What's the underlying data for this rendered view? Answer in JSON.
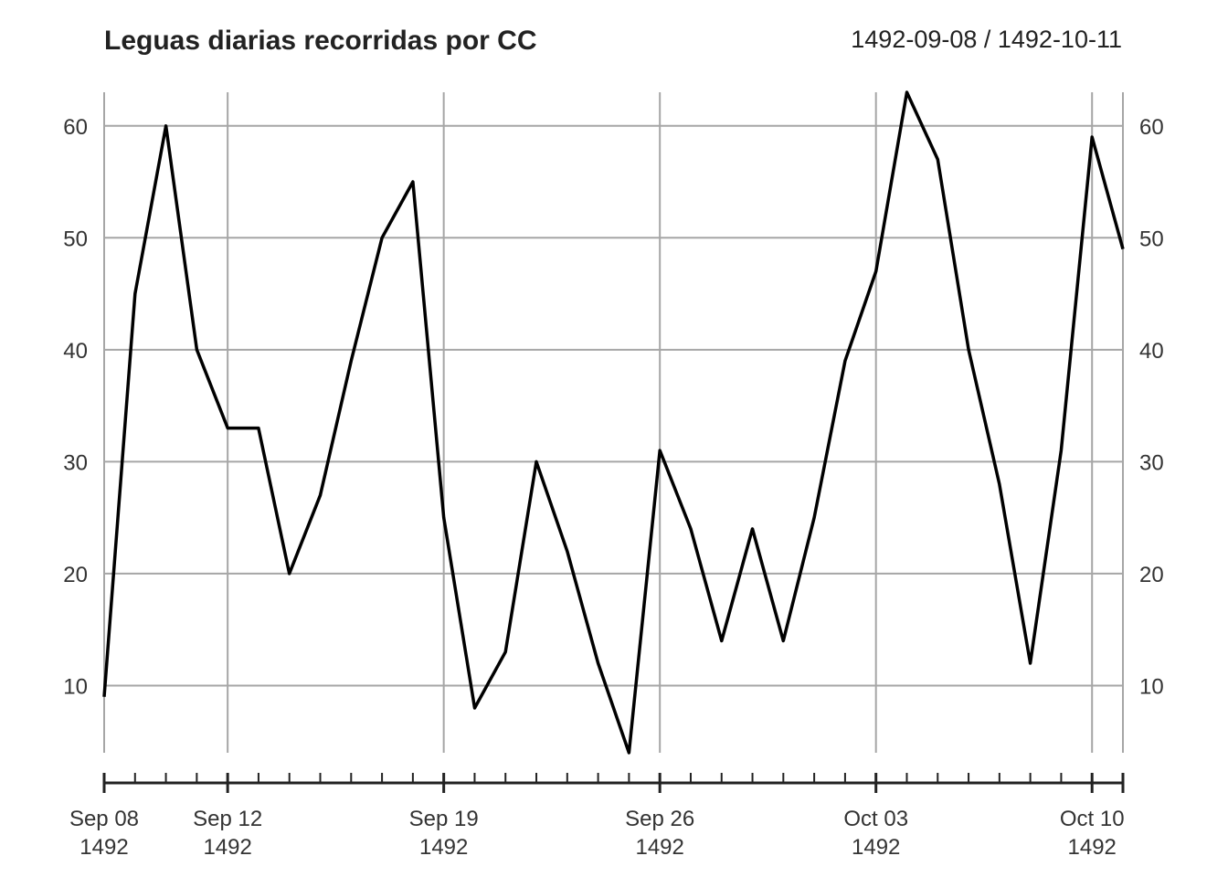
{
  "chart_data": {
    "type": "line",
    "title": "Leguas diarias recorridas por CC",
    "date_range": "1492-09-08 / 1492-10-11",
    "x": [
      "1492-09-08",
      "1492-09-09",
      "1492-09-10",
      "1492-09-11",
      "1492-09-12",
      "1492-09-13",
      "1492-09-14",
      "1492-09-15",
      "1492-09-16",
      "1492-09-17",
      "1492-09-18",
      "1492-09-19",
      "1492-09-20",
      "1492-09-21",
      "1492-09-22",
      "1492-09-23",
      "1492-09-24",
      "1492-09-25",
      "1492-09-26",
      "1492-09-27",
      "1492-09-28",
      "1492-09-29",
      "1492-09-30",
      "1492-10-01",
      "1492-10-02",
      "1492-10-03",
      "1492-10-04",
      "1492-10-05",
      "1492-10-06",
      "1492-10-07",
      "1492-10-08",
      "1492-10-09",
      "1492-10-10",
      "1492-10-11"
    ],
    "values": [
      9,
      45,
      60,
      40,
      33,
      33,
      20,
      27,
      39,
      50,
      55,
      25,
      8,
      13,
      30,
      22,
      12,
      4,
      31,
      24,
      14,
      24,
      14,
      25,
      39,
      47,
      63,
      57,
      40,
      28,
      12,
      31,
      59,
      49
    ],
    "ylim": [
      4,
      63
    ],
    "yticks": [
      10,
      20,
      30,
      40,
      50,
      60
    ],
    "major_ticks": [
      {
        "date": "1492-09-08",
        "line1": "Sep 08",
        "line2": "1492"
      },
      {
        "date": "1492-09-12",
        "line1": "Sep 12",
        "line2": "1492"
      },
      {
        "date": "1492-09-19",
        "line1": "Sep 19",
        "line2": "1492"
      },
      {
        "date": "1492-09-26",
        "line1": "Sep 26",
        "line2": "1492"
      },
      {
        "date": "1492-10-03",
        "line1": "Oct 03",
        "line2": "1492"
      },
      {
        "date": "1492-10-10",
        "line1": "Oct 10",
        "line2": "1492"
      }
    ],
    "grid": true,
    "line_color": "#000000",
    "grid_color": "#a6a6a6"
  }
}
